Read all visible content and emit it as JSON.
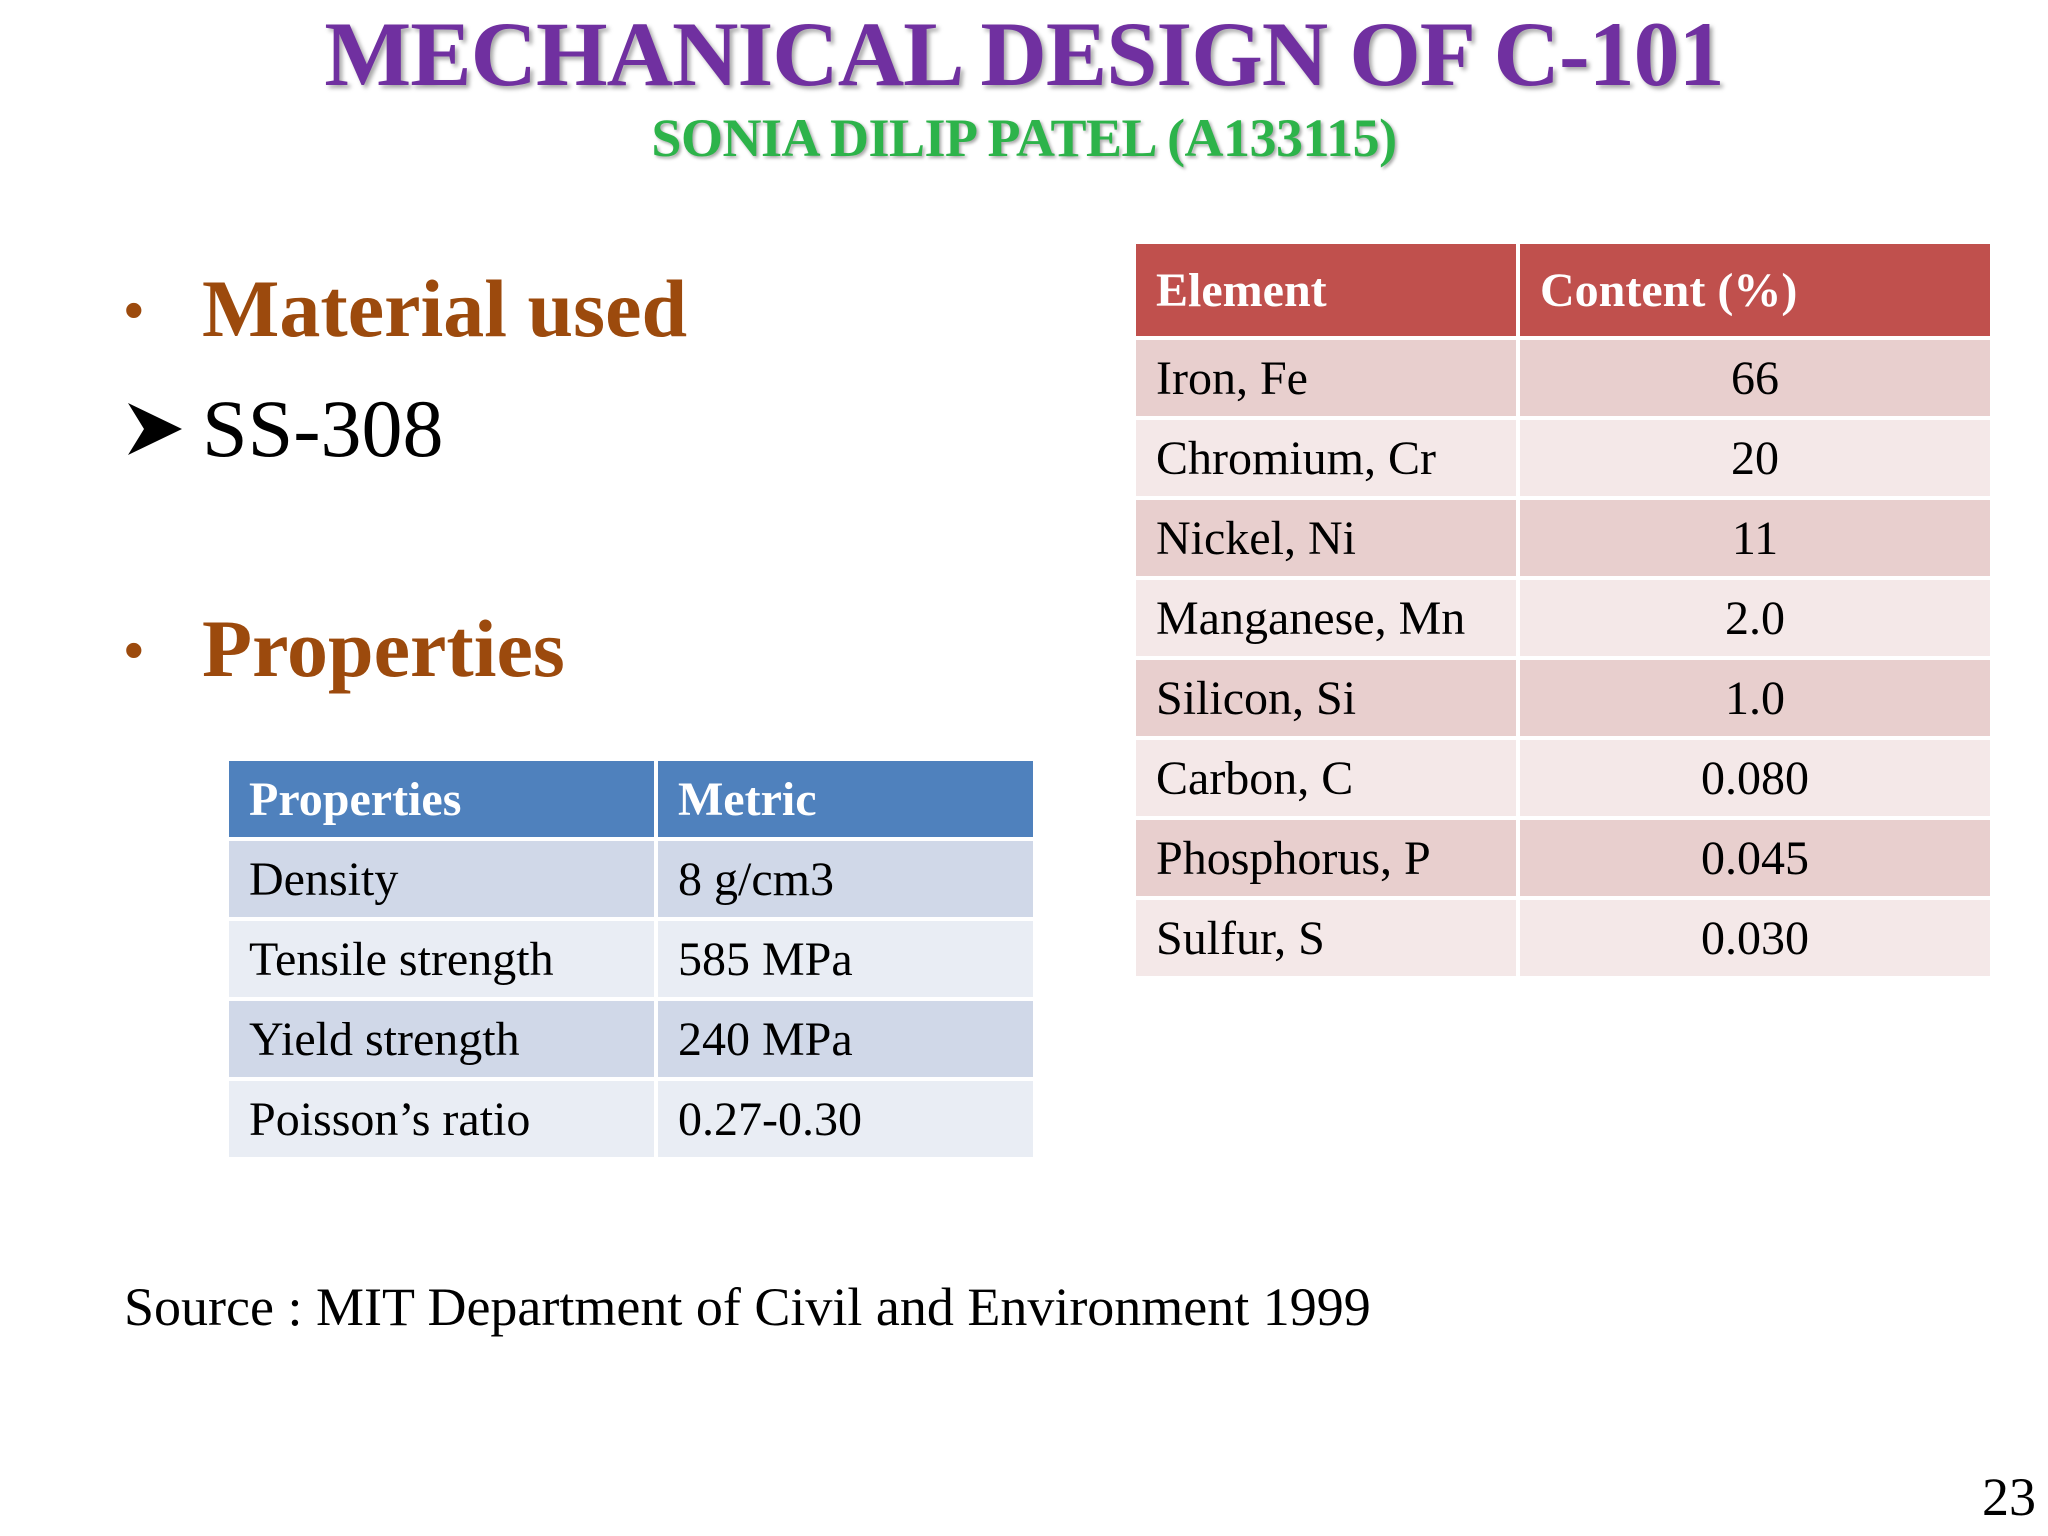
{
  "slide": {
    "title": "MECHANICAL DESIGN OF C-101",
    "subtitle": "SONIA DILIP PATEL (A133115)",
    "bullets": [
      {
        "symbol": "•",
        "heading": "Material used"
      },
      {
        "symbol": "•",
        "heading": "Properties"
      }
    ],
    "material_item": "SS-308",
    "properties_table": {
      "headers": [
        "Properties",
        "Metric"
      ],
      "rows": [
        [
          "Density",
          "8 g/cm3"
        ],
        [
          "Tensile strength",
          "585 MPa"
        ],
        [
          "Yield strength",
          "240 MPa"
        ],
        [
          "Poisson’s ratio",
          "0.27-0.30"
        ]
      ]
    },
    "element_table": {
      "headers": [
        "Element",
        "Content (%)"
      ],
      "rows": [
        [
          "Iron, Fe",
          "66"
        ],
        [
          "Chromium, Cr",
          "20"
        ],
        [
          "Nickel, Ni",
          "11"
        ],
        [
          "Manganese, Mn",
          "2.0"
        ],
        [
          "Silicon, Si",
          "1.0"
        ],
        [
          "Carbon, C",
          "0.080"
        ],
        [
          "Phosphorus, P",
          "0.045"
        ],
        [
          "Sulfur, S",
          "0.030"
        ]
      ]
    },
    "source": "Source : MIT Department of Civil and Environment 1999",
    "page_number": "23",
    "icons": {
      "arrow": "arrow-bullet-icon"
    },
    "colors": {
      "title": "#7030a0",
      "subtitle": "#2db34a",
      "heading": "#9c4a0d",
      "properties_header": "#4f81bd",
      "element_header": "#c0504d"
    }
  }
}
